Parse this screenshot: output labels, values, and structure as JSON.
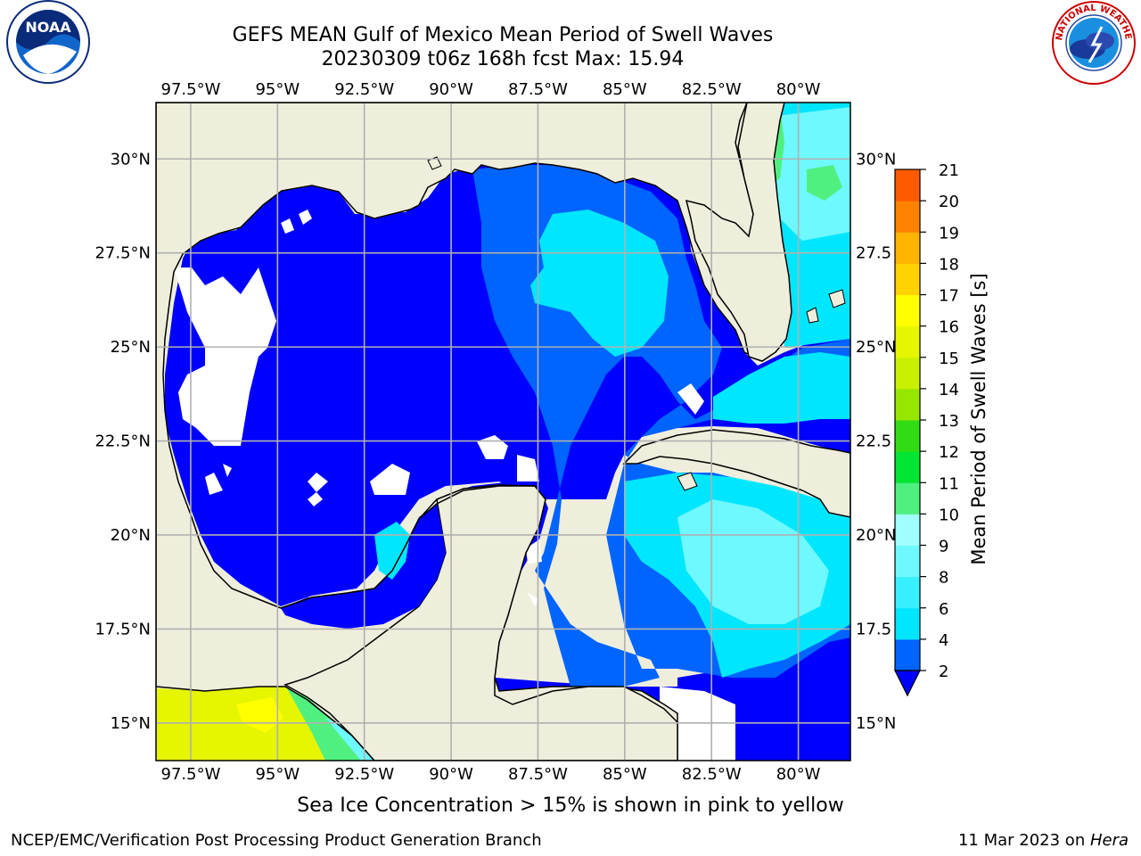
{
  "header": {
    "title_line1": "GEFS MEAN Gulf of Mexico Mean Period of Swell Waves",
    "title_line2": "20230309 t06z 168h fcst   Max: 15.94"
  },
  "logos": {
    "left": {
      "name": "noaa-logo",
      "text": "NOAA",
      "ring_text": "NATIONAL OCEANIC AND ATMOSPHERIC ADMINISTRATION · U.S. DEPARTMENT OF COMMERCE"
    },
    "right": {
      "name": "nws-logo",
      "ring_text": "NATIONAL WEATHER SERVICE"
    }
  },
  "map": {
    "lon_range": [
      -98.5,
      -78.5
    ],
    "lat_range": [
      14,
      31.5
    ],
    "lon_ticks": [
      "97.5°W",
      "95°W",
      "92.5°W",
      "90°W",
      "87.5°W",
      "85°W",
      "82.5°W",
      "80°W"
    ],
    "lon_values": [
      -97.5,
      -95,
      -92.5,
      -90,
      -87.5,
      -85,
      -82.5,
      -80
    ],
    "lat_ticks": [
      "15°N",
      "17.5°N",
      "20°N",
      "22.5°N",
      "25°N",
      "27.5°N",
      "30°N"
    ],
    "lat_values": [
      15,
      17.5,
      20,
      22.5,
      25,
      27.5,
      30
    ],
    "right_lat_ticks": [
      "15°N",
      "17.5",
      "20°N",
      "22.5",
      "25°N",
      "27.5",
      "30°N"
    ],
    "grid": true,
    "land_color": "#efeedc",
    "no_data_color": "#ffffff"
  },
  "colorbar": {
    "label": "Mean Period of Swell Waves [s]",
    "ticks": [
      "2",
      "4",
      "6",
      "8",
      "9",
      "10",
      "11",
      "12",
      "13",
      "14",
      "15",
      "16",
      "17",
      "18",
      "19",
      "20",
      "21"
    ],
    "colors": [
      "#0064ff",
      "#00e6ff",
      "#36f0ff",
      "#6ef8ff",
      "#a0fffe",
      "#50f080",
      "#00e632",
      "#32dc14",
      "#96e600",
      "#c8f000",
      "#e6f500",
      "#ffff00",
      "#ffd200",
      "#ffb400",
      "#ff8200",
      "#ff5a00",
      "#ff2d00",
      "#ff0000"
    ],
    "extend_color": "#0000ff"
  },
  "note": "Sea Ice Concentration > 15% is shown in pink to yellow",
  "footer": {
    "left": "NCEP/EMC/Verification Post Processing Product Generation Branch",
    "right_prefix": "11 Mar 2023 on ",
    "right_host": "Hera"
  }
}
